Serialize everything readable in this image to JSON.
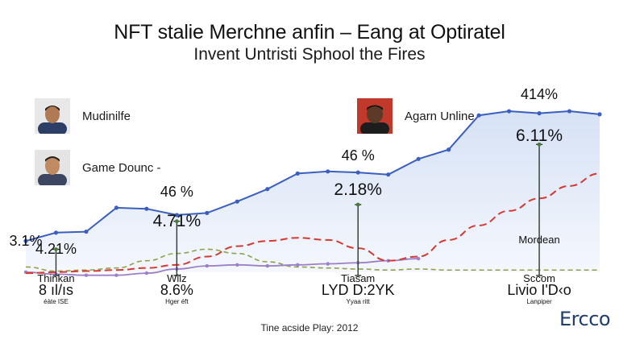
{
  "header": {
    "title": "NFT stalie Merchne anfin – Eang at Optiratel",
    "subtitle": "Invent Untristi Sphool the Fires"
  },
  "people": [
    {
      "name": "Mudinilfe",
      "skin": "#b07a55",
      "shirt": "#2c3e66",
      "hair": "#1e1612"
    },
    {
      "name": "Game Dounc -",
      "skin": "#c08a62",
      "shirt": "#3c4660",
      "hair": "#2a1f18"
    },
    {
      "name": "Agarn Unline",
      "skin": "#5c3a28",
      "shirt": "#1d1d1d",
      "hair": "#1a120e",
      "bg": "#c0392b"
    }
  ],
  "footer": {
    "caption": "Tine acside Play: 2012",
    "brand": "Ercco"
  },
  "colors": {
    "blue_line": "#3b5fbf",
    "blue_fill": "#d4e0f5",
    "red_dash": "#d33a34",
    "green_dash": "#8ca24a",
    "purple_line": "#9b7fc8",
    "marker_dark": "#2a3a2a"
  },
  "chart_data": {
    "type": "area",
    "series": [
      {
        "style": "blue-area",
        "x": [
          0,
          1,
          2,
          3,
          4,
          5,
          6,
          7,
          8,
          9,
          10,
          11,
          12,
          13,
          14,
          15,
          16,
          17,
          18,
          19
        ],
        "y": [
          3.1,
          3.9,
          4.0,
          6.3,
          6.2,
          5.6,
          5.8,
          6.9,
          8.1,
          9.6,
          9.8,
          9.7,
          9.5,
          11.0,
          11.9,
          15.2,
          15.6,
          15.4,
          15.6,
          15.3
        ]
      },
      {
        "style": "red-dash",
        "x": [
          0,
          1,
          2,
          3,
          4,
          5,
          6,
          7,
          8,
          9,
          10,
          11,
          12,
          13,
          14,
          15,
          16,
          17,
          18,
          19
        ],
        "y": [
          0.0,
          0.1,
          0.2,
          0.3,
          0.5,
          0.8,
          1.6,
          2.6,
          3.1,
          3.4,
          3.2,
          2.4,
          1.2,
          1.6,
          3.2,
          4.6,
          6.0,
          7.2,
          8.4,
          9.6
        ]
      },
      {
        "style": "green-dash",
        "x": [
          0,
          1,
          2,
          3,
          4,
          5,
          6,
          7,
          8,
          9,
          10,
          11,
          12,
          13,
          14,
          15,
          16,
          17,
          18,
          19
        ],
        "y": [
          0.6,
          0.2,
          0.3,
          0.5,
          1.2,
          1.9,
          2.3,
          1.9,
          1.1,
          0.6,
          0.5,
          0.4,
          0.3,
          0.4,
          0.3,
          0.3,
          0.3,
          0.3,
          0.3,
          0.3
        ]
      },
      {
        "style": "purple-line",
        "x": [
          0,
          1,
          2,
          3,
          4,
          5,
          6,
          7,
          8,
          9,
          10,
          11,
          12,
          13
        ],
        "y": [
          0.1,
          -0.1,
          -0.2,
          -0.2,
          0.0,
          0.4,
          0.7,
          0.8,
          0.7,
          0.8,
          0.9,
          1.0,
          1.2,
          1.4
        ]
      }
    ],
    "ylim": [
      -1,
      17
    ],
    "grid": false,
    "annotations": [
      {
        "id": "a1",
        "text": "3.1%",
        "x": 0,
        "y": 3.1,
        "size": "md"
      },
      {
        "id": "a2",
        "text": "4.21%",
        "x": 1,
        "y": 2.3,
        "size": "md"
      },
      {
        "id": "a3",
        "text": "46 %",
        "x": 5,
        "y": 7.8,
        "size": "md"
      },
      {
        "id": "a4",
        "text": "4.71%",
        "x": 5,
        "y": 5.0,
        "size": "lg"
      },
      {
        "id": "a5",
        "text": "46 %",
        "x": 11,
        "y": 11.3,
        "size": "md"
      },
      {
        "id": "a6",
        "text": "2.18%",
        "x": 11,
        "y": 8.0,
        "size": "lg"
      },
      {
        "id": "a7",
        "text": "414%",
        "x": 17,
        "y": 17.2,
        "size": "md"
      },
      {
        "id": "a8",
        "text": "6.11%",
        "x": 17,
        "y": 13.2,
        "size": "lg"
      },
      {
        "id": "a9",
        "text": "Mordean",
        "x": 17,
        "y": 3.2,
        "size": "sm"
      }
    ],
    "bottom_labels": [
      {
        "id": "b1",
        "x": 1,
        "name": "Thinkan",
        "value": "8 ıl/ıs",
        "note": "éàte ISE"
      },
      {
        "id": "b2",
        "x": 5,
        "name": "Wilz",
        "value": "8.6%",
        "note": "Hger éft"
      },
      {
        "id": "b3",
        "x": 11,
        "name": "Tiasam",
        "value": "LYD D:2YK",
        "note": "Yyaa ritt"
      },
      {
        "id": "b4",
        "x": 17,
        "name": "Sccom",
        "value": "Livio I'D‹o",
        "note": "Lanpiper"
      }
    ],
    "droplines": [
      {
        "x": 1,
        "y_top": 2.3
      },
      {
        "x": 5,
        "y_top": 5.0
      },
      {
        "x": 11,
        "y_top": 6.6
      },
      {
        "x": 17,
        "y_top": 12.4
      }
    ]
  }
}
